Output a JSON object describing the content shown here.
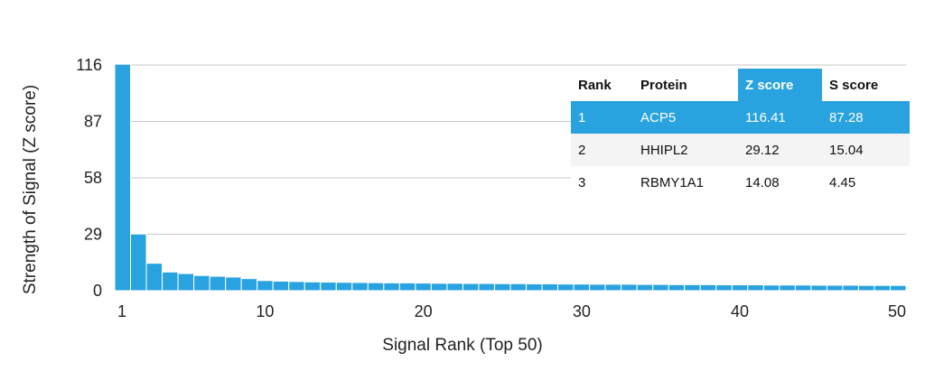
{
  "chart_data": {
    "type": "bar",
    "title": "",
    "xlabel": "Signal Rank (Top 50)",
    "ylabel": "Strength of Signal (Z score)",
    "ylim": [
      0,
      116
    ],
    "yticks": [
      0,
      29,
      58,
      87,
      116
    ],
    "xticks": [
      1,
      10,
      20,
      30,
      40,
      50
    ],
    "grid": true,
    "bar_color": "#29a3df",
    "x": [
      1,
      2,
      3,
      4,
      5,
      6,
      7,
      8,
      9,
      10,
      11,
      12,
      13,
      14,
      15,
      16,
      17,
      18,
      19,
      20,
      21,
      22,
      23,
      24,
      25,
      26,
      27,
      28,
      29,
      30,
      31,
      32,
      33,
      34,
      35,
      36,
      37,
      38,
      39,
      40,
      41,
      42,
      43,
      44,
      45,
      46,
      47,
      48,
      49,
      50
    ],
    "values": [
      116.41,
      29.12,
      14.08,
      9.6,
      8.8,
      7.8,
      7.4,
      7.0,
      6.2,
      5.2,
      4.9,
      4.7,
      4.5,
      4.4,
      4.3,
      4.2,
      4.1,
      4.0,
      4.0,
      3.9,
      3.8,
      3.8,
      3.7,
      3.7,
      3.6,
      3.6,
      3.5,
      3.5,
      3.4,
      3.4,
      3.3,
      3.3,
      3.3,
      3.2,
      3.2,
      3.1,
      3.1,
      3.1,
      3.0,
      3.0,
      3.0,
      2.9,
      2.9,
      2.9,
      2.8,
      2.8,
      2.8,
      2.7,
      2.7,
      2.7
    ]
  },
  "table": {
    "headers": {
      "rank": "Rank",
      "protein": "Protein",
      "z": "Z score",
      "s": "S score"
    },
    "rows": [
      {
        "rank": "1",
        "protein": "ACP5",
        "z": "116.41",
        "s": "87.28"
      },
      {
        "rank": "2",
        "protein": "HHIPL2",
        "z": "29.12",
        "s": "15.04"
      },
      {
        "rank": "3",
        "protein": "RBMY1A1",
        "z": "14.08",
        "s": "4.45"
      }
    ],
    "highlight_color": "#29a3df"
  }
}
